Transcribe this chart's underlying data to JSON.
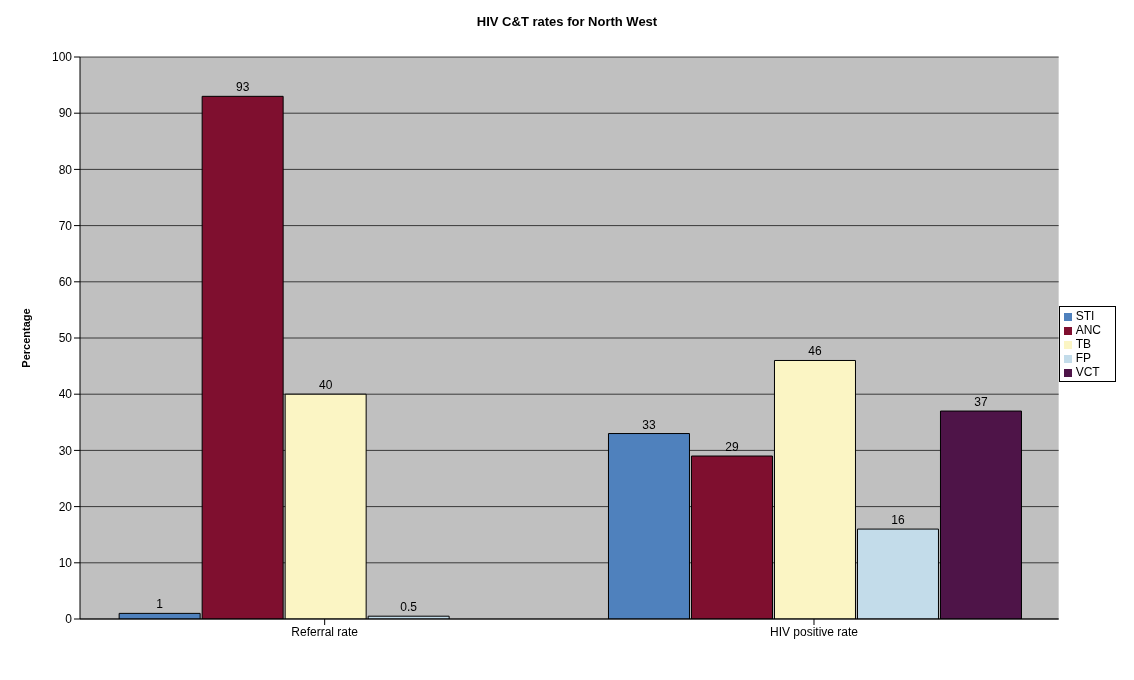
{
  "chart_data": {
    "type": "bar",
    "title": "HIV C&T rates for North West",
    "ylabel": "Percentage",
    "categories": [
      "Referral rate",
      "HIV positive rate"
    ],
    "series": [
      {
        "name": "STI",
        "color": "#4f81bd",
        "values": [
          1,
          33
        ]
      },
      {
        "name": "ANC",
        "color": "#7f0f2f",
        "values": [
          93,
          29
        ]
      },
      {
        "name": "TB",
        "color": "#fbf5c4",
        "values": [
          40,
          46
        ]
      },
      {
        "name": "FP",
        "color": "#c3dcea",
        "values": [
          0.5,
          16
        ]
      },
      {
        "name": "VCT",
        "color": "#4e1448",
        "values": [
          null,
          37
        ]
      }
    ],
    "ylim": [
      0,
      100
    ],
    "yticks": [
      0,
      10,
      20,
      30,
      40,
      50,
      60,
      70,
      80,
      90,
      100
    ],
    "grid": "y",
    "legend": "right",
    "data_labels": true
  }
}
